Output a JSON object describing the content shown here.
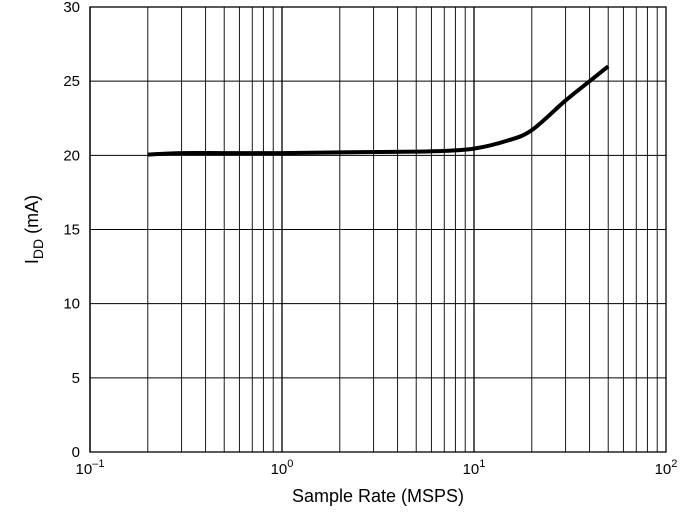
{
  "chart_data": {
    "type": "line",
    "title": "",
    "xlabel": "Sample Rate (MSPS)",
    "ylabel": {
      "main": "I",
      "subscript": "DD",
      "unit": " (mA)"
    },
    "x_scale": "log",
    "xlim": [
      0.1,
      100
    ],
    "ylim": [
      0,
      30
    ],
    "grid": true,
    "x_ticks": [
      {
        "value": 0.1,
        "base": "10",
        "exp": "–1"
      },
      {
        "value": 1,
        "base": "10",
        "exp": "0"
      },
      {
        "value": 10,
        "base": "10",
        "exp": "1"
      },
      {
        "value": 100,
        "base": "10",
        "exp": "2"
      }
    ],
    "y_ticks": [
      {
        "value": 0,
        "label": "0"
      },
      {
        "value": 5,
        "label": "5"
      },
      {
        "value": 10,
        "label": "10"
      },
      {
        "value": 15,
        "label": "15"
      },
      {
        "value": 20,
        "label": "20"
      },
      {
        "value": 25,
        "label": "25"
      },
      {
        "value": 30,
        "label": "30"
      }
    ],
    "series": [
      {
        "color": "#000000",
        "x": [
          0.2,
          0.3,
          0.5,
          1,
          2,
          5,
          7,
          10,
          15,
          20,
          30,
          40,
          50
        ],
        "y": [
          20.05,
          20.15,
          20.15,
          20.15,
          20.2,
          20.25,
          20.3,
          20.45,
          21.0,
          21.7,
          23.7,
          25.0,
          26.0
        ]
      }
    ]
  }
}
